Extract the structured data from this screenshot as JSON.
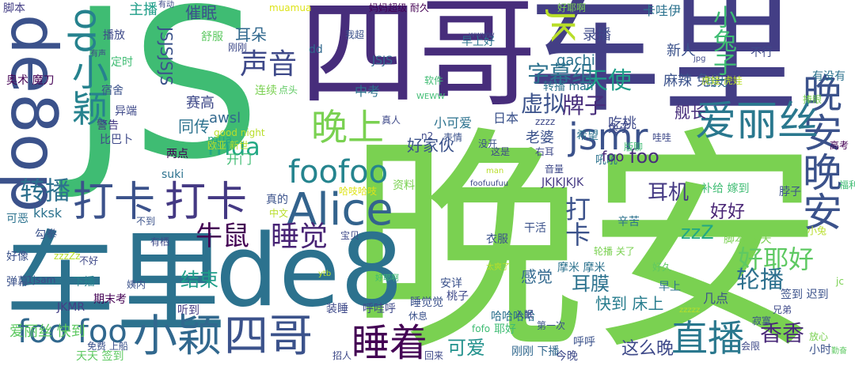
{
  "words": [
    {
      "text": "JS",
      "color": "#3fbc73"
    },
    {
      "text": "晚安",
      "color": "#7ad151"
    },
    {
      "text": "四哥",
      "color": "#472d7b"
    },
    {
      "text": "车里",
      "color": "#433e85"
    },
    {
      "text": "车里",
      "color": "#2c728e"
    },
    {
      "text": "de8",
      "color": "#2c728e"
    },
    {
      "text": "de8op",
      "color": "#3b528b"
    },
    {
      "text": "小颖",
      "color": "#31688e"
    },
    {
      "text": "四哥",
      "color": "#3b528b"
    },
    {
      "text": "Alice",
      "color": "#33638d"
    },
    {
      "text": "打卡",
      "color": "#3b528b"
    },
    {
      "text": "打卡",
      "color": "#443983"
    },
    {
      "text": "晚安晚安",
      "color": "#3b528b"
    },
    {
      "text": "爱丽丝",
      "color": "#2a788e"
    },
    {
      "text": "jsmr",
      "color": "#3b528b"
    },
    {
      "text": "op小颖",
      "color": "#26828e"
    },
    {
      "text": "晚上",
      "color": "#7ad151"
    },
    {
      "text": "睡着",
      "color": "#440154"
    },
    {
      "text": "直播",
      "color": "#2a788e"
    },
    {
      "text": "foofoo",
      "color": "#25848e"
    },
    {
      "text": "foo foo",
      "color": "#31688e"
    },
    {
      "text": "睡觉",
      "color": "#482475"
    },
    {
      "text": "JK",
      "color": "#b8de29"
    },
    {
      "text": "声音",
      "color": "#3e4989"
    },
    {
      "text": "转播",
      "color": "#2d708e"
    },
    {
      "text": "牛鼠",
      "color": "#440154"
    },
    {
      "text": "好耶好",
      "color": "#5ec962"
    },
    {
      "text": "轮播",
      "color": "#2d708e"
    },
    {
      "text": "天使",
      "color": "#1f9e89"
    },
    {
      "text": "小兔子",
      "color": "#3fbc73"
    },
    {
      "text": "字幕组",
      "color": "#2c728e"
    },
    {
      "text": "虚拟",
      "color": "#3b528b"
    },
    {
      "text": "牌子",
      "color": "#472d7b"
    },
    {
      "text": "mua",
      "color": "#22a884"
    },
    {
      "text": "foo",
      "color": "#472d7b"
    },
    {
      "text": "打卡",
      "color": "#3b528b"
    },
    {
      "text": "香香",
      "color": "#482878"
    },
    {
      "text": "耳机",
      "color": "#443983"
    },
    {
      "text": "结束",
      "color": "#1f9e89"
    },
    {
      "text": "可爱",
      "color": "#21918c"
    },
    {
      "text": "这么晚",
      "color": "#3e4989"
    },
    {
      "text": "耳膜",
      "color": "#2c728e"
    },
    {
      "text": "感觉",
      "color": "#31688e"
    },
    {
      "text": "zzZ",
      "color": "#22a884"
    },
    {
      "text": "好好",
      "color": "#482475"
    },
    {
      "text": "快到 床上",
      "color": "#287d8e"
    },
    {
      "text": "舰长",
      "color": "#472d7b"
    },
    {
      "text": "耳朵",
      "color": "#31688e"
    },
    {
      "text": "新人",
      "color": "#3b528b"
    },
    {
      "text": "麻辣 兔头",
      "color": "#3b528b"
    },
    {
      "text": "同传",
      "color": "#2c728e"
    },
    {
      "text": "赛高",
      "color": "#3e4989"
    },
    {
      "text": "awsl",
      "color": "#31688e"
    },
    {
      "text": "JSJSJSJS",
      "color": "#3b528b"
    },
    {
      "text": "吃桃",
      "color": "#3e4989"
    },
    {
      "text": "gachi",
      "color": "#2c728e"
    },
    {
      "text": "催眠",
      "color": "#3b528b"
    },
    {
      "text": "录播",
      "color": "#3e4989"
    },
    {
      "text": "卡哇伊",
      "color": "#2c728e"
    },
    {
      "text": "主播",
      "color": "#1f9e89"
    },
    {
      "text": "脚本",
      "color": "#433e85"
    },
    {
      "text": "播放",
      "color": "#3e4989"
    },
    {
      "text": "奥术 魔刀",
      "color": "#440154"
    },
    {
      "text": "宿舍",
      "color": "#3b528b"
    },
    {
      "text": "异端",
      "color": "#3e4989"
    },
    {
      "text": "警告",
      "color": "#443983"
    },
    {
      "text": "好家伙",
      "color": "#3b528b"
    },
    {
      "text": "老婆",
      "color": "#3b528b"
    },
    {
      "text": "小可爱",
      "color": "#2c728e"
    },
    {
      "text": "日本",
      "color": "#3b528b"
    },
    {
      "text": "中考",
      "color": "#2c728e"
    },
    {
      "text": "JSJS",
      "color": "#31688e"
    },
    {
      "text": "早上好",
      "color": "#2c728e"
    },
    {
      "text": "转播 man",
      "color": "#2c728e"
    },
    {
      "text": "用力",
      "color": "#2c728e"
    },
    {
      "text": "希望",
      "color": "#2c728e"
    },
    {
      "text": "兔子",
      "color": "#3e4989"
    },
    {
      "text": "吼吼",
      "color": "#2c728e"
    },
    {
      "text": "foo",
      "color": "#482878"
    },
    {
      "text": "JKJKJKJK",
      "color": "#443983"
    },
    {
      "text": "开门",
      "color": "#3fbc73"
    },
    {
      "text": "mua",
      "color": "#22a884"
    },
    {
      "text": "kksk",
      "color": "#2c728e"
    },
    {
      "text": "勾拳",
      "color": "#3b528b"
    },
    {
      "text": "弹幕",
      "color": "#3b528b"
    },
    {
      "text": "JKMR",
      "color": "#433e85"
    },
    {
      "text": "期末考",
      "color": "#440154"
    },
    {
      "text": "听到",
      "color": "#443983"
    },
    {
      "text": "爱丽丝 快到",
      "color": "#5ec962"
    },
    {
      "text": "天天 签到",
      "color": "#5ec962"
    },
    {
      "text": "下播",
      "color": "#26828e"
    },
    {
      "text": "好像",
      "color": "#3b528b"
    },
    {
      "text": "可恶",
      "color": "#2c728e"
    },
    {
      "text": "资料",
      "color": "#7ad151"
    },
    {
      "text": "装睡",
      "color": "#3e4989"
    },
    {
      "text": "呼哇呼",
      "color": "#3e4989"
    },
    {
      "text": "睡觉觉",
      "color": "#3b528b"
    },
    {
      "text": "安详",
      "color": "#3b528b"
    },
    {
      "text": "桃子",
      "color": "#3e4989"
    },
    {
      "text": "哈哈哈哈",
      "color": "#2c728e"
    },
    {
      "text": "耶好",
      "color": "#3fbc73"
    },
    {
      "text": "刚刚 下播",
      "color": "#31688e"
    },
    {
      "text": "今晚",
      "color": "#3e4989"
    },
    {
      "text": "呼呼",
      "color": "#3b528b"
    },
    {
      "text": "摩米 摩米",
      "color": "#2c728e"
    },
    {
      "text": "轮播 关了",
      "color": "#7ad151"
    },
    {
      "text": "早上",
      "color": "#2c728e"
    },
    {
      "text": "几点",
      "color": "#3b528b"
    },
    {
      "text": "签到 迟到",
      "color": "#3b528b"
    },
    {
      "text": "小时",
      "color": "#3b528b"
    },
    {
      "text": "辛苦",
      "color": "#2c728e"
    },
    {
      "text": "脚本 天天",
      "color": "#7ad151"
    },
    {
      "text": "干活",
      "color": "#3b528b"
    },
    {
      "text": "衣服",
      "color": "#3b528b"
    },
    {
      "text": "补给 嫁到",
      "color": "#3fbc73"
    },
    {
      "text": "脖子",
      "color": "#3b528b"
    },
    {
      "text": "高考",
      "color": "#440154"
    },
    {
      "text": "不行",
      "color": "#3e4989"
    },
    {
      "text": "有没有",
      "color": "#2c728e"
    },
    {
      "text": "虎娃 虎娃",
      "color": "#b8de29"
    },
    {
      "text": "真的",
      "color": "#3b528b"
    },
    {
      "text": "两点",
      "color": "#440154"
    },
    {
      "text": "比巴卜",
      "color": "#3e4989"
    },
    {
      "text": "定时",
      "color": "#3fbc73"
    },
    {
      "text": "舒服",
      "color": "#5ec962"
    },
    {
      "text": "连续",
      "color": "#7ad151"
    },
    {
      "text": "点头",
      "color": "#5ec962"
    },
    {
      "text": "好耶啊",
      "color": "#7ad151"
    },
    {
      "text": "妈妈超级 耐久",
      "color": "#440154"
    },
    {
      "text": "我超",
      "color": "#3b528b"
    },
    {
      "text": "刚刚",
      "color": "#3e4989"
    },
    {
      "text": "muamua",
      "color": "#dde318"
    },
    {
      "text": "dd",
      "color": "#31688e"
    },
    {
      "text": "有声",
      "color": "#3e4989"
    },
    {
      "text": "软件",
      "color": "#3fbc73"
    },
    {
      "text": "wwww",
      "color": "#3e4989"
    },
    {
      "text": "good night",
      "color": "#b8de29"
    },
    {
      "text": "欧亚 新世",
      "color": "#b8de29"
    },
    {
      "text": "zzzz",
      "color": "#3e4989"
    },
    {
      "text": "表情",
      "color": "#3b528b"
    },
    {
      "text": "没开",
      "color": "#3b528b"
    },
    {
      "text": "这是",
      "color": "#3e4989"
    },
    {
      "text": "右耳",
      "color": "#3e4989"
    },
    {
      "text": "音量",
      "color": "#3e4989"
    },
    {
      "text": "版聊",
      "color": "#3fbc73"
    },
    {
      "text": "哇哇",
      "color": "#3e4989"
    },
    {
      "text": "哈吱哈吱",
      "color": "#dde318"
    },
    {
      "text": "suki",
      "color": "#2c728e"
    },
    {
      "text": "中文",
      "color": "#b8de29"
    },
    {
      "text": "宝贝",
      "color": "#3e4989"
    },
    {
      "text": "zzzZz",
      "color": "#b8de29"
    },
    {
      "text": "有栖",
      "color": "#3e4989"
    },
    {
      "text": "不到",
      "color": "#3b528b"
    },
    {
      "text": "1jsam",
      "color": "#3e4989"
    },
    {
      "text": "免费 上船",
      "color": "#3b528b"
    },
    {
      "text": "姨内",
      "color": "#3b528b"
    },
    {
      "text": "不好",
      "color": "#3e4989"
    },
    {
      "text": "n2",
      "color": "#3e4989"
    },
    {
      "text": "真人",
      "color": "#3e4989"
    },
    {
      "text": "休息",
      "color": "#3b528b"
    },
    {
      "text": "fofo",
      "color": "#3fbc73"
    },
    {
      "text": "回来",
      "color": "#3e4989"
    },
    {
      "text": "招人",
      "color": "#3e4989"
    },
    {
      "text": "会限",
      "color": "#3e4989"
    },
    {
      "text": "放心",
      "color": "#7ad151"
    },
    {
      "text": "勤奋",
      "color": "#5ec962"
    },
    {
      "text": "兄弟",
      "color": "#3e4989"
    },
    {
      "text": "寂寞",
      "color": "#3b528b"
    },
    {
      "text": "jc",
      "color": "#7ad151"
    },
    {
      "text": "好久",
      "color": "#5ec962"
    },
    {
      "text": "第一次",
      "color": "#3b528b"
    },
    {
      "text": "入眠",
      "color": "#3e4989"
    },
    {
      "text": "太爽了",
      "color": "#b8de29"
    },
    {
      "text": "foofuufuu",
      "color": "#3e4989"
    },
    {
      "text": "man",
      "color": "#b8de29"
    },
    {
      "text": "ytb",
      "color": "#b8de29"
    },
    {
      "text": "捧眼",
      "color": "#7ad151"
    },
    {
      "text": "jpg",
      "color": "#3e4989"
    },
    {
      "text": "有动",
      "color": "#3e4989"
    },
    {
      "text": "WEWW",
      "color": "#3fbc73"
    },
    {
      "text": "福利",
      "color": "#3fbc73"
    },
    {
      "text": "小兔",
      "color": "#b8de29"
    },
    {
      "text": "好耶啊",
      "color": "#3fbc73"
    },
    {
      "text": "zzzzz",
      "color": "#b8de29"
    }
  ]
}
